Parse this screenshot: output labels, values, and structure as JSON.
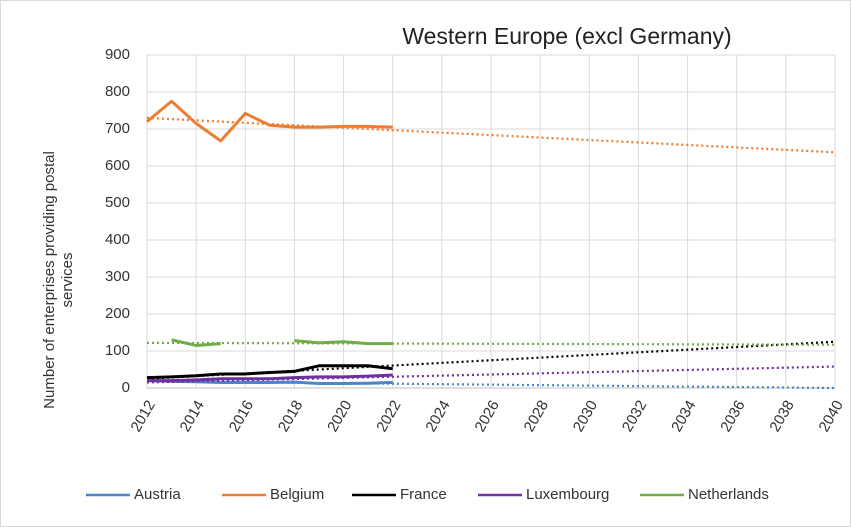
{
  "chart_data": {
    "type": "line",
    "title": "Western Europe (excl Germany)",
    "ylabel": [
      "Number of enterprises providing postal",
      "services"
    ],
    "x": [
      2012,
      2013,
      2014,
      2015,
      2016,
      2017,
      2018,
      2019,
      2020,
      2021,
      2022
    ],
    "xlim": [
      2012,
      2040
    ],
    "xticks": [
      2012,
      2014,
      2016,
      2018,
      2020,
      2022,
      2024,
      2026,
      2028,
      2030,
      2032,
      2034,
      2036,
      2038,
      2040
    ],
    "ylim": [
      0,
      900
    ],
    "yticks": [
      0,
      100,
      200,
      300,
      400,
      500,
      600,
      700,
      800,
      900
    ],
    "grid": true,
    "legend": "bottom",
    "trend_x": [
      2012,
      2040
    ],
    "series": [
      {
        "name": "Austria",
        "color": "#4a86c8",
        "values": [
          20,
          18,
          17,
          15,
          15,
          15,
          16,
          12,
          12,
          13,
          15
        ],
        "trend": [
          18,
          0
        ]
      },
      {
        "name": "Belgium",
        "color": "#ed7d31",
        "values": [
          720,
          775,
          715,
          668,
          742,
          710,
          705,
          705,
          707,
          707,
          705
        ],
        "trend": [
          730,
          637
        ]
      },
      {
        "name": "France",
        "color": "#000000",
        "values": [
          28,
          30,
          33,
          38,
          38,
          42,
          45,
          60,
          60,
          60,
          52
        ],
        "trend": [
          25,
          125
        ]
      },
      {
        "name": "Luxembourg",
        "color": "#7030a0",
        "values": [
          20,
          20,
          22,
          25,
          25,
          25,
          28,
          30,
          30,
          32,
          35
        ],
        "trend": [
          15,
          58
        ]
      },
      {
        "name": "Netherlands",
        "color": "#70ad47",
        "values": [
          null,
          130,
          115,
          120,
          null,
          null,
          128,
          122,
          125,
          120,
          120
        ],
        "trend": [
          122,
          117
        ]
      }
    ]
  }
}
